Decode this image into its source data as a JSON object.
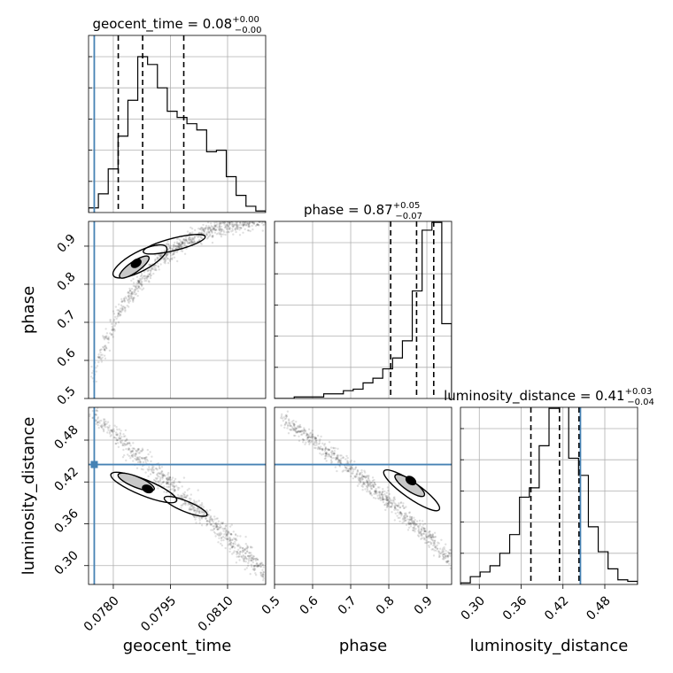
{
  "chart_data": {
    "type": "corner",
    "parameters": [
      "geocent_time",
      "phase",
      "luminosity_distance"
    ],
    "titles": {
      "geocent_time": {
        "name": "geocent_time",
        "median": "0.08",
        "plus": "+0.00",
        "minus": "−0.00"
      },
      "phase": {
        "name": "phase",
        "median": "0.87",
        "plus": "+0.05",
        "minus": "−0.07"
      },
      "luminosity_distance": {
        "name": "luminosity_distance",
        "median": "0.41",
        "plus": "+0.03",
        "minus": "−0.04"
      }
    },
    "ranges": {
      "geocent_time": [
        0.07735,
        0.082
      ],
      "phase": [
        0.5,
        0.965
      ],
      "luminosity_distance": [
        0.273,
        0.527
      ]
    },
    "ticks": {
      "geocent_time": [
        "0.0780",
        "0.0795",
        "0.0810"
      ],
      "phase": [
        "0.5",
        "0.6",
        "0.7",
        "0.8",
        "0.9"
      ],
      "luminosity_distance": [
        "0.30",
        "0.36",
        "0.42",
        "0.48"
      ]
    },
    "injection": {
      "geocent_time": 0.0775,
      "luminosity_distance": 0.445
    },
    "quantiles": {
      "geocent_time": [
        0.07813,
        0.07877,
        0.07985
      ],
      "phase": [
        0.805,
        0.873,
        0.918
      ],
      "luminosity_distance": [
        0.374,
        0.415,
        0.443
      ]
    },
    "histograms": {
      "geocent_time": [
        0.03,
        0.12,
        0.28,
        0.49,
        0.72,
        1.0,
        0.95,
        0.8,
        0.65,
        0.61,
        0.57,
        0.53,
        0.39,
        0.4,
        0.23,
        0.11,
        0.04,
        0.01
      ],
      "phase": [
        0.0,
        0.0,
        0.01,
        0.01,
        0.01,
        0.03,
        0.03,
        0.05,
        0.06,
        0.1,
        0.13,
        0.19,
        0.26,
        0.37,
        0.69,
        1.08,
        1.13,
        0.48
      ],
      "luminosity_distance": [
        0.01,
        0.05,
        0.08,
        0.12,
        0.2,
        0.32,
        0.56,
        0.62,
        0.89,
        1.13,
        1.16,
        0.81,
        0.7,
        0.37,
        0.21,
        0.1,
        0.03,
        0.02
      ]
    },
    "grid": true
  }
}
